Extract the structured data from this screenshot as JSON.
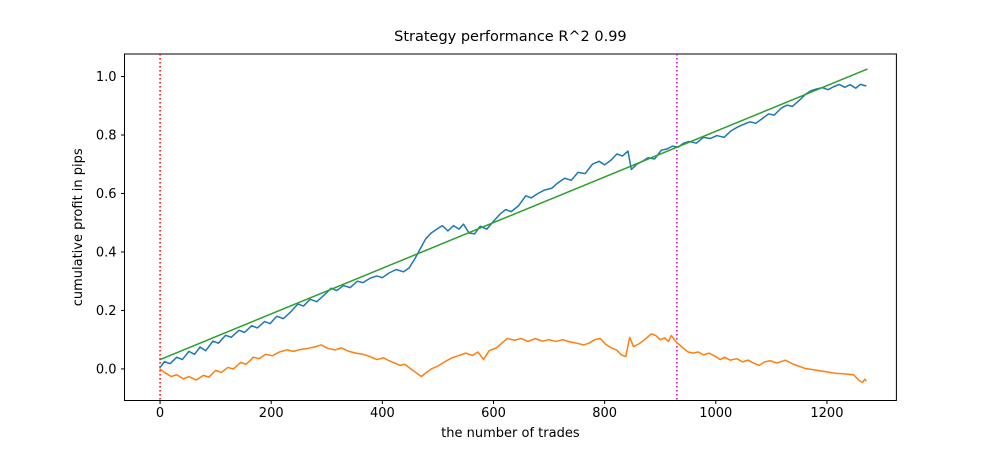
{
  "chart_data": {
    "type": "line",
    "title": "Strategy performance R^2 0.99",
    "xlabel": "the number of trades",
    "ylabel": "cumulative profit in pips",
    "grid": false,
    "legend": "none",
    "xlim": [
      -64,
      1325
    ],
    "ylim": [
      -0.108,
      1.077
    ],
    "x_ticks": [
      0,
      200,
      400,
      600,
      800,
      1000,
      1200
    ],
    "x_tick_labels": [
      "0",
      "200",
      "400",
      "600",
      "800",
      "1000",
      "1200"
    ],
    "y_ticks": [
      0.0,
      0.2,
      0.4,
      0.6,
      0.8,
      1.0
    ],
    "y_tick_labels": [
      "0.0",
      "0.2",
      "0.4",
      "0.6",
      "0.8",
      "1.0"
    ],
    "colors": {
      "cumulative_profit": "#1f77b4",
      "linear_fit": "#2ca02c",
      "oscillator": "#ff7f0e",
      "vline_start": "#ff0000",
      "vline_split": "#bf00bf",
      "spine": "#000000",
      "background": "#ffffff"
    },
    "vlines": [
      {
        "name": "vline-start",
        "x": 0,
        "color": "#ff0000",
        "style": "dotted"
      },
      {
        "name": "vline-split",
        "x": 930,
        "color": "#bf00bf",
        "style": "dotted"
      }
    ],
    "series": [
      {
        "name": "cumulative-profit",
        "color": "#1f77b4",
        "style": "solid",
        "points": [
          [
            0,
            0.005
          ],
          [
            8,
            0.025
          ],
          [
            18,
            0.018
          ],
          [
            30,
            0.04
          ],
          [
            40,
            0.032
          ],
          [
            52,
            0.06
          ],
          [
            62,
            0.05
          ],
          [
            72,
            0.075
          ],
          [
            82,
            0.062
          ],
          [
            95,
            0.095
          ],
          [
            105,
            0.088
          ],
          [
            118,
            0.115
          ],
          [
            128,
            0.108
          ],
          [
            142,
            0.132
          ],
          [
            152,
            0.125
          ],
          [
            165,
            0.148
          ],
          [
            175,
            0.14
          ],
          [
            188,
            0.162
          ],
          [
            198,
            0.155
          ],
          [
            210,
            0.18
          ],
          [
            222,
            0.172
          ],
          [
            235,
            0.195
          ],
          [
            248,
            0.222
          ],
          [
            258,
            0.215
          ],
          [
            270,
            0.238
          ],
          [
            282,
            0.23
          ],
          [
            295,
            0.252
          ],
          [
            308,
            0.276
          ],
          [
            318,
            0.268
          ],
          [
            330,
            0.285
          ],
          [
            342,
            0.278
          ],
          [
            355,
            0.3
          ],
          [
            365,
            0.295
          ],
          [
            378,
            0.31
          ],
          [
            390,
            0.318
          ],
          [
            400,
            0.312
          ],
          [
            412,
            0.328
          ],
          [
            425,
            0.34
          ],
          [
            438,
            0.332
          ],
          [
            448,
            0.345
          ],
          [
            458,
            0.375
          ],
          [
            468,
            0.41
          ],
          [
            478,
            0.445
          ],
          [
            488,
            0.465
          ],
          [
            498,
            0.478
          ],
          [
            508,
            0.49
          ],
          [
            518,
            0.472
          ],
          [
            528,
            0.49
          ],
          [
            538,
            0.478
          ],
          [
            546,
            0.495
          ],
          [
            556,
            0.465
          ],
          [
            566,
            0.462
          ],
          [
            576,
            0.488
          ],
          [
            588,
            0.478
          ],
          [
            600,
            0.505
          ],
          [
            612,
            0.53
          ],
          [
            622,
            0.545
          ],
          [
            632,
            0.538
          ],
          [
            645,
            0.558
          ],
          [
            658,
            0.592
          ],
          [
            668,
            0.585
          ],
          [
            680,
            0.6
          ],
          [
            692,
            0.612
          ],
          [
            705,
            0.618
          ],
          [
            715,
            0.635
          ],
          [
            728,
            0.652
          ],
          [
            740,
            0.645
          ],
          [
            752,
            0.672
          ],
          [
            765,
            0.668
          ],
          [
            778,
            0.7
          ],
          [
            790,
            0.71
          ],
          [
            800,
            0.698
          ],
          [
            812,
            0.715
          ],
          [
            822,
            0.735
          ],
          [
            832,
            0.728
          ],
          [
            842,
            0.745
          ],
          [
            848,
            0.682
          ],
          [
            858,
            0.7
          ],
          [
            868,
            0.71
          ],
          [
            878,
            0.722
          ],
          [
            890,
            0.718
          ],
          [
            902,
            0.748
          ],
          [
            912,
            0.752
          ],
          [
            922,
            0.762
          ],
          [
            932,
            0.758
          ],
          [
            942,
            0.772
          ],
          [
            952,
            0.778
          ],
          [
            965,
            0.772
          ],
          [
            978,
            0.792
          ],
          [
            990,
            0.788
          ],
          [
            1002,
            0.798
          ],
          [
            1015,
            0.792
          ],
          [
            1028,
            0.815
          ],
          [
            1040,
            0.828
          ],
          [
            1052,
            0.838
          ],
          [
            1062,
            0.845
          ],
          [
            1072,
            0.84
          ],
          [
            1085,
            0.858
          ],
          [
            1095,
            0.872
          ],
          [
            1105,
            0.868
          ],
          [
            1118,
            0.892
          ],
          [
            1128,
            0.902
          ],
          [
            1138,
            0.898
          ],
          [
            1150,
            0.918
          ],
          [
            1162,
            0.94
          ],
          [
            1172,
            0.952
          ],
          [
            1182,
            0.958
          ],
          [
            1192,
            0.962
          ],
          [
            1202,
            0.955
          ],
          [
            1212,
            0.965
          ],
          [
            1222,
            0.973
          ],
          [
            1232,
            0.963
          ],
          [
            1242,
            0.972
          ],
          [
            1252,
            0.96
          ],
          [
            1260,
            0.973
          ],
          [
            1270,
            0.968
          ]
        ]
      },
      {
        "name": "oscillator",
        "color": "#ff7f0e",
        "style": "solid",
        "points": [
          [
            0,
            0.0
          ],
          [
            8,
            -0.012
          ],
          [
            20,
            -0.026
          ],
          [
            30,
            -0.02
          ],
          [
            42,
            -0.034
          ],
          [
            52,
            -0.026
          ],
          [
            65,
            -0.038
          ],
          [
            78,
            -0.022
          ],
          [
            88,
            -0.028
          ],
          [
            100,
            -0.005
          ],
          [
            110,
            -0.012
          ],
          [
            122,
            0.005
          ],
          [
            132,
            0.0
          ],
          [
            145,
            0.022
          ],
          [
            155,
            0.016
          ],
          [
            168,
            0.04
          ],
          [
            178,
            0.035
          ],
          [
            190,
            0.05
          ],
          [
            202,
            0.045
          ],
          [
            215,
            0.058
          ],
          [
            228,
            0.065
          ],
          [
            240,
            0.06
          ],
          [
            252,
            0.066
          ],
          [
            265,
            0.07
          ],
          [
            278,
            0.075
          ],
          [
            290,
            0.082
          ],
          [
            302,
            0.07
          ],
          [
            315,
            0.065
          ],
          [
            326,
            0.072
          ],
          [
            340,
            0.06
          ],
          [
            352,
            0.054
          ],
          [
            365,
            0.05
          ],
          [
            378,
            0.042
          ],
          [
            390,
            0.032
          ],
          [
            402,
            0.038
          ],
          [
            412,
            0.028
          ],
          [
            422,
            0.02
          ],
          [
            432,
            0.012
          ],
          [
            440,
            0.016
          ],
          [
            450,
            0.002
          ],
          [
            460,
            -0.012
          ],
          [
            470,
            -0.026
          ],
          [
            478,
            -0.014
          ],
          [
            488,
            0.0
          ],
          [
            500,
            0.01
          ],
          [
            512,
            0.024
          ],
          [
            525,
            0.038
          ],
          [
            538,
            0.046
          ],
          [
            550,
            0.054
          ],
          [
            562,
            0.046
          ],
          [
            572,
            0.058
          ],
          [
            582,
            0.032
          ],
          [
            592,
            0.062
          ],
          [
            605,
            0.072
          ],
          [
            615,
            0.088
          ],
          [
            625,
            0.104
          ],
          [
            638,
            0.098
          ],
          [
            650,
            0.104
          ],
          [
            662,
            0.094
          ],
          [
            675,
            0.104
          ],
          [
            688,
            0.095
          ],
          [
            700,
            0.1
          ],
          [
            712,
            0.094
          ],
          [
            725,
            0.1
          ],
          [
            738,
            0.092
          ],
          [
            750,
            0.088
          ],
          [
            762,
            0.082
          ],
          [
            772,
            0.088
          ],
          [
            782,
            0.1
          ],
          [
            792,
            0.104
          ],
          [
            802,
            0.084
          ],
          [
            812,
            0.072
          ],
          [
            822,
            0.064
          ],
          [
            830,
            0.048
          ],
          [
            838,
            0.042
          ],
          [
            845,
            0.108
          ],
          [
            852,
            0.076
          ],
          [
            862,
            0.086
          ],
          [
            872,
            0.1
          ],
          [
            884,
            0.12
          ],
          [
            892,
            0.114
          ],
          [
            900,
            0.1
          ],
          [
            908,
            0.106
          ],
          [
            915,
            0.094
          ],
          [
            920,
            0.114
          ],
          [
            928,
            0.094
          ],
          [
            935,
            0.082
          ],
          [
            942,
            0.07
          ],
          [
            950,
            0.058
          ],
          [
            960,
            0.054
          ],
          [
            968,
            0.058
          ],
          [
            978,
            0.048
          ],
          [
            988,
            0.054
          ],
          [
            998,
            0.044
          ],
          [
            1008,
            0.032
          ],
          [
            1016,
            0.04
          ],
          [
            1026,
            0.03
          ],
          [
            1038,
            0.035
          ],
          [
            1048,
            0.024
          ],
          [
            1058,
            0.03
          ],
          [
            1068,
            0.02
          ],
          [
            1078,
            0.012
          ],
          [
            1088,
            0.024
          ],
          [
            1098,
            0.028
          ],
          [
            1110,
            0.02
          ],
          [
            1125,
            0.03
          ],
          [
            1140,
            0.016
          ],
          [
            1160,
            0.002
          ],
          [
            1180,
            -0.004
          ],
          [
            1200,
            -0.01
          ],
          [
            1215,
            -0.015
          ],
          [
            1232,
            -0.017
          ],
          [
            1248,
            -0.02
          ],
          [
            1258,
            -0.04
          ],
          [
            1264,
            -0.046
          ],
          [
            1268,
            -0.035
          ],
          [
            1270,
            -0.04
          ]
        ]
      },
      {
        "name": "linear-fit",
        "color": "#2ca02c",
        "style": "solid",
        "points": [
          [
            0,
            0.032
          ],
          [
            1272,
            1.025
          ]
        ]
      }
    ]
  }
}
